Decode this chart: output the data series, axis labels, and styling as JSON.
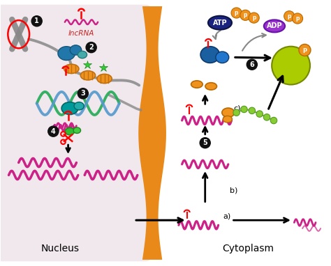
{
  "bg_color": "#f5eef0",
  "cell_membrane_color": "#e8891a",
  "nucleus_label": "Nucleus",
  "cytoplasm_label": "Cytoplasm",
  "lncrna_label": "lncRNA",
  "nucleus_bg": "#f0e8ec",
  "circle_black": "#111111",
  "wavy_color": "#cc2288",
  "chromosome_color": "#888888",
  "helix_green": "#27ae60",
  "helix_blue": "#5b9bd5",
  "protein_blue_dark": "#1a5fa0",
  "protein_blue_med": "#2980b9",
  "protein_teal": "#009999",
  "nucleosome_orange": "#f0921e",
  "star_green": "#44cc44",
  "green_protein": "#33bb33",
  "atp_blue": "#1a2480",
  "adp_purple": "#9933cc",
  "phosphate_orange": "#f0921e",
  "yg_sphere": "#aacc00",
  "fig_width": 4.74,
  "fig_height": 3.82,
  "dpi": 100
}
